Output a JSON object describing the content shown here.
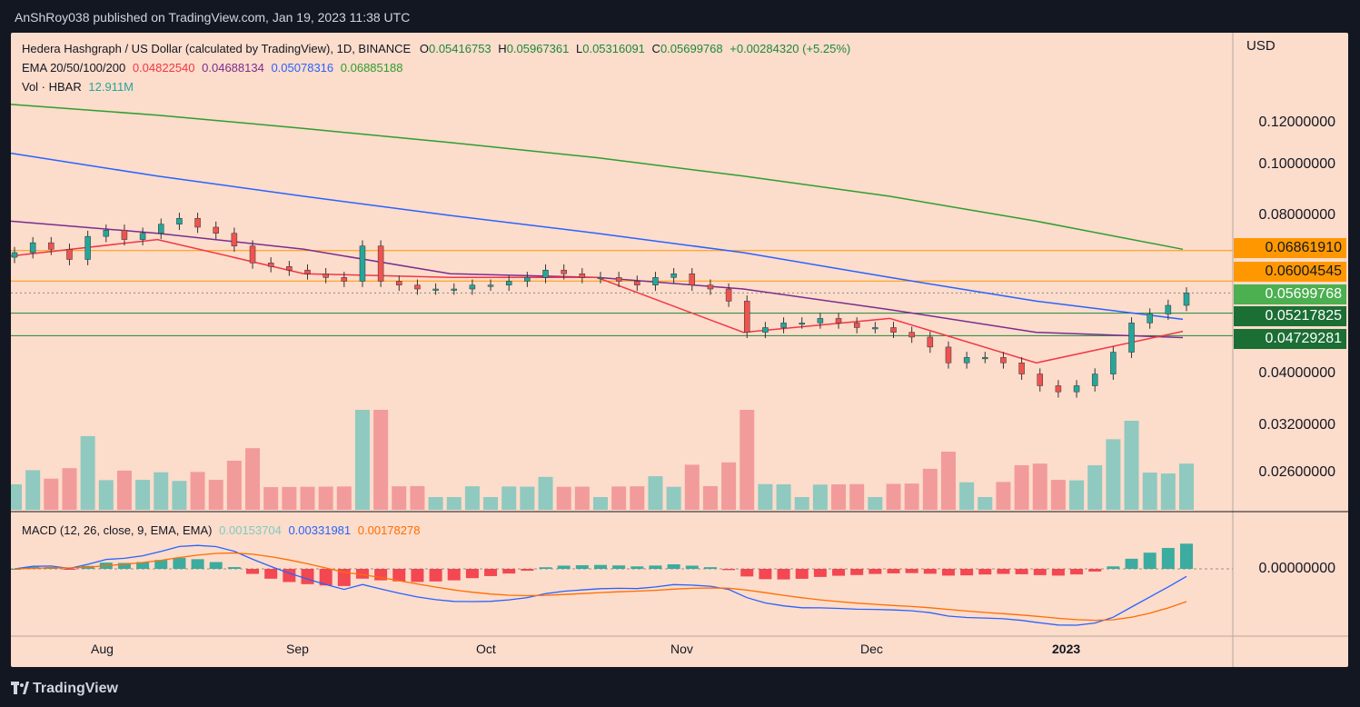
{
  "header": {
    "published": "AnShRoy038 published on TradingView.com, Jan 19, 2023 11:38 UTC"
  },
  "footer": {
    "brand": "TradingView",
    "logo_icon": "tradingview-logo-icon"
  },
  "chart_data": {
    "type": "candlestick",
    "title": "Hedera Hashgraph / US Dollar (calculated by TradingView), 1D, BINANCE",
    "ohlc": {
      "o_label": "O",
      "o": "0.05416753",
      "h_label": "H",
      "h": "0.05967361",
      "l_label": "L",
      "l": "0.05316091",
      "c_label": "C",
      "c": "0.05699768",
      "change": "+0.00284320 (+5.25%)"
    },
    "ema": {
      "label": "EMA 20/50/100/200",
      "ema20": "0.04822540",
      "ema50": "0.04688134",
      "ema100": "0.05078316",
      "ema200": "0.06885188",
      "colors": {
        "ema20": "#f23645",
        "ema50": "#7b2d8e",
        "ema100": "#2962ff",
        "ema200": "#2e9e2e"
      }
    },
    "volume": {
      "label": "Vol · HBAR",
      "value": "12.911M"
    },
    "macd": {
      "label": "MACD (12, 26, close, 9, EMA, EMA)",
      "histogram": "0.00153704",
      "macd": "0.00331981",
      "signal": "0.00178278",
      "colors": {
        "histogram": "#26a69a",
        "macd": "#2962ff",
        "signal": "#ff6d00"
      }
    },
    "currency": "USD",
    "y_ticks": [
      "0.12000000",
      "0.10000000",
      "0.08000000",
      "0.04000000",
      "0.03200000",
      "0.02600000"
    ],
    "macd_zero": "0.00000000",
    "x_ticks": [
      "Aug",
      "Sep",
      "Oct",
      "Nov",
      "Dec",
      "2023"
    ],
    "levels": [
      {
        "value": "0.06861910",
        "color": "#ff9800",
        "kind": "resistance"
      },
      {
        "value": "0.06004545",
        "color": "#ff9800",
        "kind": "resistance"
      },
      {
        "value": "0.05699768",
        "color": "#4caf50",
        "kind": "last-price"
      },
      {
        "value": "0.05217825",
        "color": "#1b8a3a",
        "kind": "support"
      },
      {
        "value": "0.04729281",
        "color": "#1b8a3a",
        "kind": "support"
      }
    ],
    "ema_series": {
      "ema200": [
        0.13,
        0.124,
        0.117,
        0.11,
        0.103,
        0.095,
        0.087,
        0.078,
        0.069
      ],
      "ema100": [
        0.105,
        0.095,
        0.087,
        0.08,
        0.074,
        0.068,
        0.061,
        0.055,
        0.0508
      ],
      "ema50": [
        0.078,
        0.074,
        0.069,
        0.062,
        0.061,
        0.058,
        0.053,
        0.048,
        0.0469
      ],
      "ema20": [
        0.067,
        0.072,
        0.062,
        0.061,
        0.061,
        0.048,
        0.051,
        0.042,
        0.0482
      ]
    },
    "closes": [
      0.068,
      0.071,
      0.069,
      0.066,
      0.073,
      0.075,
      0.072,
      0.074,
      0.077,
      0.079,
      0.076,
      0.074,
      0.07,
      0.065,
      0.064,
      0.063,
      0.062,
      0.061,
      0.06,
      0.07,
      0.06,
      0.059,
      0.058,
      0.058,
      0.058,
      0.059,
      0.059,
      0.06,
      0.061,
      0.063,
      0.062,
      0.061,
      0.061,
      0.06,
      0.059,
      0.061,
      0.062,
      0.059,
      0.058,
      0.055,
      0.048,
      0.049,
      0.05,
      0.05,
      0.051,
      0.05,
      0.049,
      0.049,
      0.048,
      0.047,
      0.045,
      0.042,
      0.043,
      0.043,
      0.042,
      0.04,
      0.038,
      0.037,
      0.038,
      0.04,
      0.044,
      0.05,
      0.052,
      0.054,
      0.057
    ]
  }
}
